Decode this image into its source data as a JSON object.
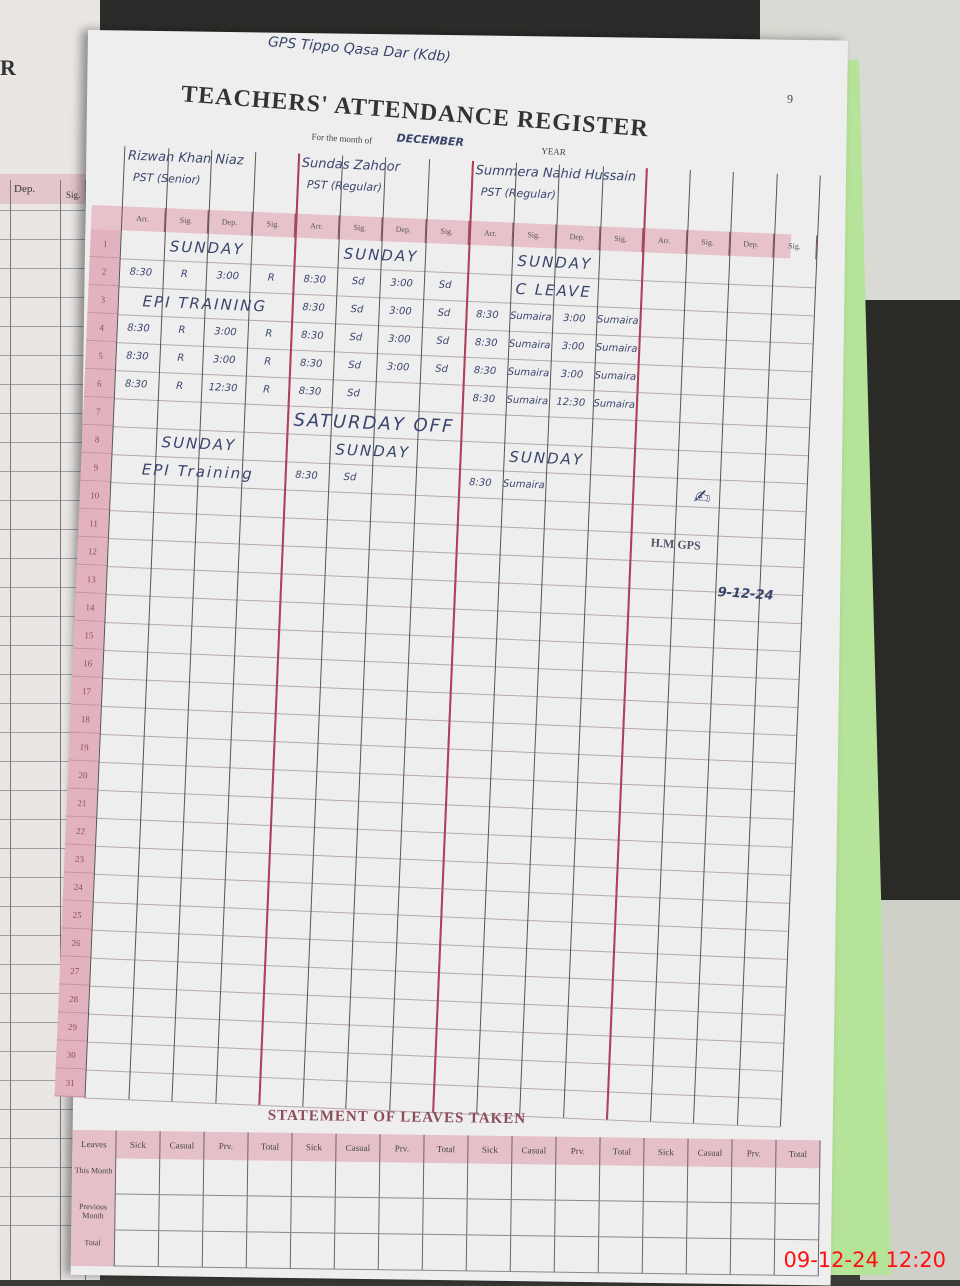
{
  "left_page": {
    "corner_letter": "R",
    "dep_label": "Dep.",
    "sig_label": "Sig."
  },
  "header": {
    "school_handwritten": "GPS Tippo Qasa Dar (Kdb)",
    "title": "TEACHERS' ATTENDANCE REGISTER",
    "month_label": "For the month of",
    "month_value": "DECEMBER",
    "year_label": "YEAR",
    "page_number": "9"
  },
  "column_headers": [
    "Arr.",
    "Sig.",
    "Dep.",
    "Sig."
  ],
  "teachers": [
    {
      "name": "Rizwan Khan Niaz",
      "post": "PST (Senior)"
    },
    {
      "name": "Sundas Zahoor",
      "post": "PST (Regular)"
    },
    {
      "name": "Summera Nahid Hussain",
      "post": "PST (Regular)"
    },
    {
      "name": "",
      "post": ""
    }
  ],
  "days": [
    "1",
    "2",
    "3",
    "4",
    "5",
    "6",
    "7",
    "8",
    "9",
    "10",
    "11",
    "12",
    "13",
    "14",
    "15",
    "16",
    "17",
    "18",
    "19",
    "20",
    "21",
    "22",
    "23",
    "24",
    "25",
    "26",
    "27",
    "28",
    "29",
    "30",
    "31"
  ],
  "entries": [
    {
      "day": "1",
      "t": [
        {
          "note": "SUNDAY"
        },
        {
          "note": "SUNDAY"
        },
        {
          "note": "SUNDAY"
        }
      ]
    },
    {
      "day": "2",
      "t": [
        {
          "cells": [
            "8:30",
            "R",
            "3:00",
            "R"
          ]
        },
        {
          "cells": [
            "8:30",
            "Sd",
            "3:00",
            "Sd"
          ]
        },
        {
          "note": "C LEAVE"
        }
      ]
    },
    {
      "day": "3",
      "t": [
        {
          "note": "EPI TRAINING"
        },
        {
          "cells": [
            "8:30",
            "Sd",
            "3:00",
            "Sd"
          ]
        },
        {
          "cells": [
            "8:30",
            "Sumaira",
            "3:00",
            "Sumaira"
          ]
        }
      ]
    },
    {
      "day": "4",
      "t": [
        {
          "cells": [
            "8:30",
            "R",
            "3:00",
            "R"
          ]
        },
        {
          "cells": [
            "8:30",
            "Sd",
            "3:00",
            "Sd"
          ]
        },
        {
          "cells": [
            "8:30",
            "Sumaira",
            "3:00",
            "Sumaira"
          ]
        }
      ]
    },
    {
      "day": "5",
      "t": [
        {
          "cells": [
            "8:30",
            "R",
            "3:00",
            "R"
          ]
        },
        {
          "cells": [
            "8:30",
            "Sd",
            "3:00",
            "Sd"
          ]
        },
        {
          "cells": [
            "8:30",
            "Sumaira",
            "3:00",
            "Sumaira"
          ]
        }
      ]
    },
    {
      "day": "6",
      "t": [
        {
          "cells": [
            "8:30",
            "R",
            "12:30",
            "R"
          ]
        },
        {
          "cells": [
            "8:30",
            "Sd",
            "",
            ""
          ]
        },
        {
          "cells": [
            "8:30",
            "Sumaira",
            "12:30",
            "Sumaira"
          ]
        }
      ]
    },
    {
      "day": "7",
      "full": "SATURDAY OFF"
    },
    {
      "day": "8",
      "t": [
        {
          "note": "SUNDAY"
        },
        {
          "note": "SUNDAY"
        },
        {
          "note": "SUNDAY"
        }
      ]
    },
    {
      "day": "9",
      "t": [
        {
          "note": "EPI Training"
        },
        {
          "cells": [
            "8:30",
            "Sd",
            "",
            ""
          ]
        },
        {
          "cells": [
            "8:30",
            "Sumaira",
            "",
            ""
          ]
        }
      ]
    }
  ],
  "stamp": {
    "text": "H.M  GPS",
    "signature_date": "9-12-24"
  },
  "leaves": {
    "title": "STATEMENT OF LEAVES TAKEN",
    "row_header": "Leaves",
    "columns": [
      "Sick",
      "Casual",
      "Prv.",
      "Total"
    ],
    "rows": [
      "This Month",
      "Previous Month",
      "Total"
    ]
  },
  "camera_timestamp": "09-12-24  12:20",
  "colors": {
    "rule_pink": "#e2b3be",
    "ink": "#39456d",
    "timestamp": "#ff1010"
  }
}
